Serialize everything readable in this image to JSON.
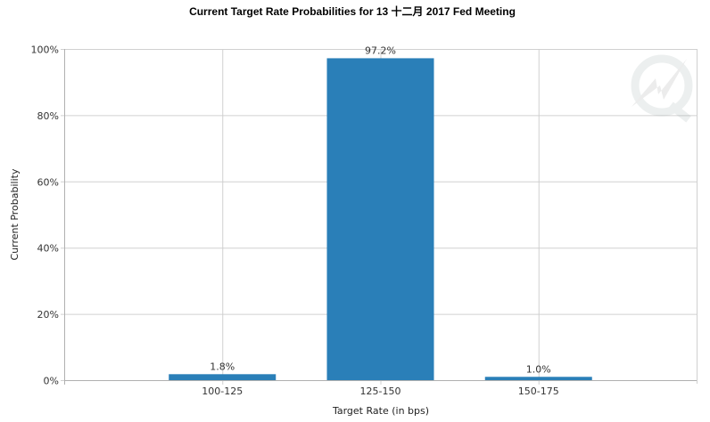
{
  "chart_data": {
    "type": "bar",
    "title": "Current Target Rate Probabilities for 13 十二月 2017  Fed Meeting",
    "xlabel": "Target Rate (in bps)",
    "ylabel": "Current Probability",
    "categories": [
      "100-125",
      "125-150",
      "150-175"
    ],
    "values": [
      1.8,
      97.2,
      1.0
    ],
    "data_labels": [
      "1.8%",
      "97.2%",
      "1.0%"
    ],
    "ylim": [
      0,
      100
    ],
    "yticks": [
      0,
      20,
      40,
      60,
      80,
      100
    ],
    "ytick_labels": [
      "0%",
      "20%",
      "40%",
      "60%",
      "80%",
      "100%"
    ],
    "grid": true,
    "legend": "none",
    "bar_color": "#2a7fb8"
  },
  "watermark": "Q"
}
